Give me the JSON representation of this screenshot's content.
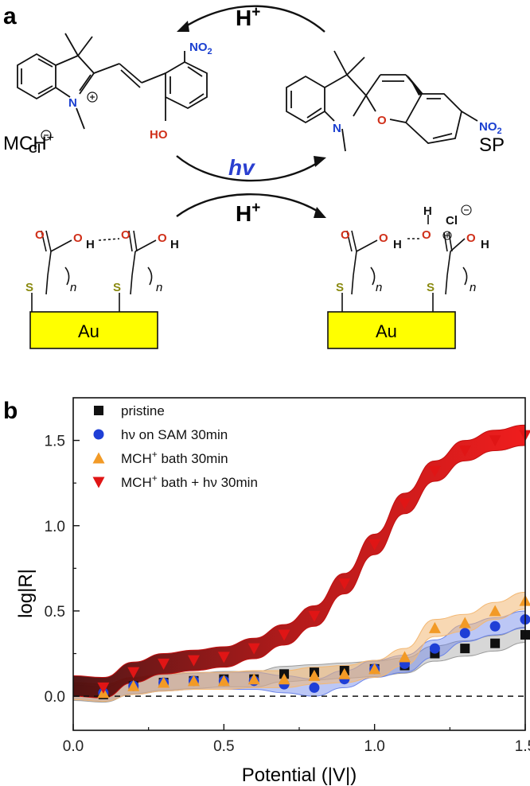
{
  "panel_a": {
    "label": "a",
    "top_arrow_label": "H",
    "top_arrow_sup": "+",
    "hv_label": "hv",
    "bottom_arrow_label": "H",
    "bottom_arrow_sup": "+",
    "mch_label": "MCH",
    "mch_sup": "+",
    "sp_label": "SP",
    "atoms": {
      "no2_left": "NO",
      "no2_sub": "2",
      "n_plus": "N",
      "cl": "Cl",
      "ho": "HO",
      "n_sp": "N",
      "o_sp": "O",
      "no2_right": "NO",
      "o": "O",
      "h": "H",
      "s": "S",
      "n_italic": "n",
      "cl2": "Cl"
    },
    "au_left": "Au",
    "au_right": "Au"
  },
  "panel_b": {
    "label": "b"
  },
  "chart_data": {
    "type": "scatter",
    "xlabel": "Potential (|V|)",
    "ylabel": "log|R|",
    "xlim": [
      0.0,
      1.5
    ],
    "ylim": [
      -0.2,
      1.75
    ],
    "xticks": [
      "0.0",
      "0.5",
      "1.0",
      "1.5"
    ],
    "yticks": [
      "0.0",
      "0.5",
      "1.0",
      "1.5"
    ],
    "reference_line_y": 0,
    "legend_position": "top-left",
    "series": [
      {
        "name": "pristine",
        "marker": "square",
        "color": "#111111",
        "band_color": "#9a9a9a",
        "x": [
          0.1,
          0.2,
          0.3,
          0.4,
          0.5,
          0.6,
          0.7,
          0.8,
          0.9,
          1.0,
          1.1,
          1.2,
          1.3,
          1.4,
          1.5
        ],
        "y": [
          0.01,
          0.06,
          0.08,
          0.09,
          0.1,
          0.1,
          0.13,
          0.14,
          0.15,
          0.16,
          0.18,
          0.25,
          0.28,
          0.31,
          0.36
        ]
      },
      {
        "name": "hν on SAM 30min",
        "marker": "circle",
        "color": "#1f3fd6",
        "band_color": "#6a83e8",
        "x": [
          0.1,
          0.2,
          0.3,
          0.4,
          0.5,
          0.6,
          0.7,
          0.8,
          0.9,
          1.0,
          1.1,
          1.2,
          1.3,
          1.4,
          1.5
        ],
        "y": [
          0.02,
          0.06,
          0.08,
          0.09,
          0.09,
          0.09,
          0.07,
          0.05,
          0.1,
          0.16,
          0.19,
          0.28,
          0.37,
          0.41,
          0.45
        ]
      },
      {
        "name": "MCH",
        "name_sup": "+",
        "name_suffix": " bath 30min",
        "marker": "triangle-up",
        "color": "#f29a26",
        "band_color": "#f3b874",
        "x": [
          0.1,
          0.2,
          0.3,
          0.4,
          0.5,
          0.6,
          0.7,
          0.8,
          0.9,
          1.0,
          1.1,
          1.2,
          1.3,
          1.4,
          1.5
        ],
        "y": [
          0.02,
          0.06,
          0.08,
          0.09,
          0.09,
          0.1,
          0.1,
          0.12,
          0.13,
          0.16,
          0.23,
          0.4,
          0.43,
          0.5,
          0.56
        ]
      },
      {
        "name": "MCH",
        "name_sup": "+",
        "name_suffix": " bath + hν 30min",
        "marker": "triangle-down",
        "color": "#e01515",
        "band_color": "#c01010",
        "x": [
          0.1,
          0.2,
          0.3,
          0.4,
          0.5,
          0.6,
          0.7,
          0.8,
          0.9,
          1.0,
          1.1,
          1.2,
          1.3,
          1.4,
          1.5
        ],
        "y": [
          0.05,
          0.14,
          0.19,
          0.21,
          0.23,
          0.28,
          0.36,
          0.47,
          0.66,
          0.89,
          1.13,
          1.32,
          1.44,
          1.5,
          1.53
        ]
      }
    ]
  }
}
